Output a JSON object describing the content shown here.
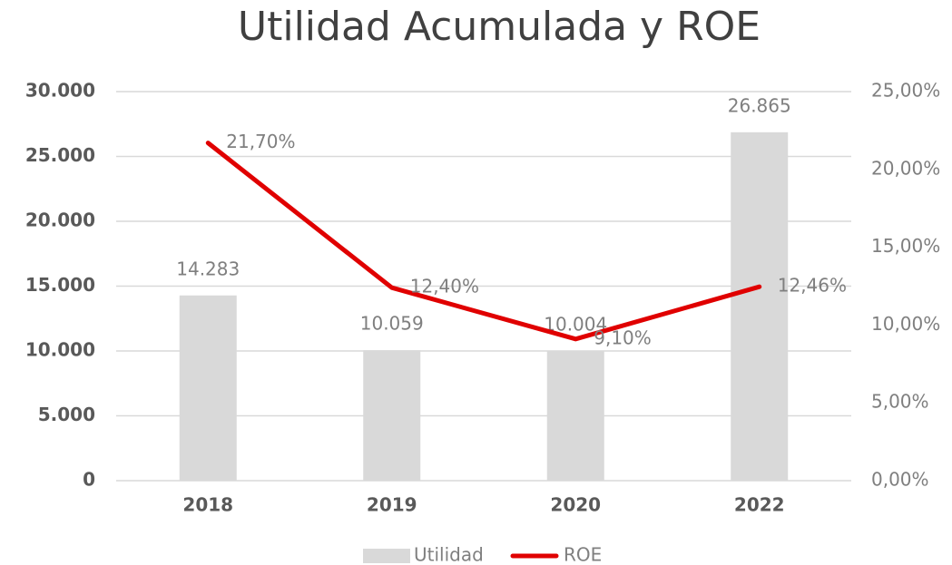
{
  "chart_data": {
    "type": "bar-line",
    "title": "Utilidad Acumulada y ROE",
    "categories": [
      "2018",
      "2019",
      "2020",
      "2022"
    ],
    "series": [
      {
        "name": "Utilidad",
        "type": "bar",
        "color": "#d9d9d9",
        "values": [
          14283,
          10059,
          10004,
          26865
        ],
        "value_labels": [
          "14.283",
          "10.059",
          "10.004",
          "26.865"
        ]
      },
      {
        "name": "ROE",
        "type": "line",
        "axis": "y2",
        "color": "#e00000",
        "values": [
          21.7,
          12.4,
          9.1,
          12.46
        ],
        "value_labels": [
          "21,70%",
          "12,40%",
          "9,10%",
          "12,46%"
        ]
      }
    ],
    "ylim": [
      0,
      30000
    ],
    "yticks": [
      0,
      {
        "value": 5000,
        "label": "5.000"
      },
      {
        "value": 10000,
        "label": "10.000"
      },
      {
        "value": 15000,
        "label": "15.000"
      },
      {
        "value": 20000,
        "label": "20.000"
      },
      {
        "value": 25000,
        "label": "25.000"
      },
      {
        "value": 30000,
        "label": "30.000"
      }
    ],
    "y2lim": [
      0,
      25
    ],
    "y2ticks": [
      {
        "value": 0,
        "label": "0,00%"
      },
      {
        "value": 5,
        "label": "5,00%"
      },
      {
        "value": 10,
        "label": "10,00%"
      },
      {
        "value": 15,
        "label": "15,00%"
      },
      {
        "value": 20,
        "label": "20,00%"
      },
      {
        "value": 25,
        "label": "25,00%"
      }
    ],
    "grid": true,
    "legend": "bottom"
  }
}
